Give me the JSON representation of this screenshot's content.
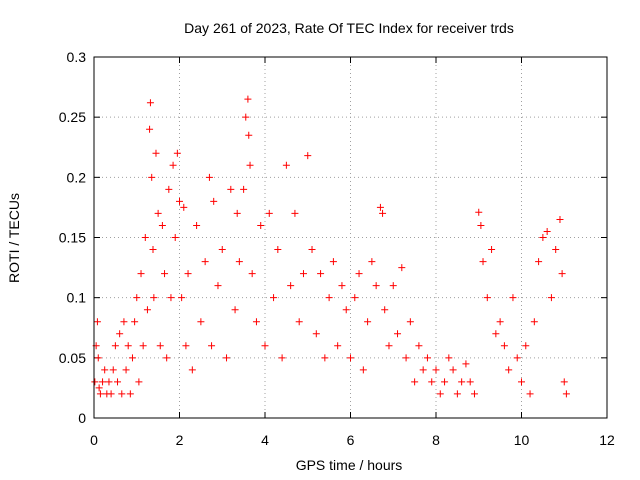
{
  "chart_data": {
    "type": "scatter",
    "title": "Day 261 of 2023, Rate Of TEC Index for receiver trds",
    "xlabel": "GPS time / hours",
    "ylabel": "ROTI / TECUs",
    "xlim": [
      0,
      12
    ],
    "ylim": [
      0,
      0.3
    ],
    "x_ticks": [
      "0",
      "2",
      "4",
      "6",
      "8",
      "10",
      "12"
    ],
    "y_ticks": [
      "0",
      "0.05",
      "0.1",
      "0.15",
      "0.2",
      "0.25",
      "0.3"
    ],
    "grid": true,
    "marker": "+",
    "color": "#ff0000",
    "series": [
      {
        "x": [
          0.02,
          0.05,
          0.08,
          0.1,
          0.12,
          0.15,
          0.2,
          0.25,
          0.3,
          0.35,
          0.4,
          0.45,
          0.5,
          0.55,
          0.6,
          0.65,
          0.7,
          0.75,
          0.8,
          0.85,
          0.9,
          0.95,
          1.0,
          1.05,
          1.1,
          1.15,
          1.2,
          1.25,
          1.3,
          1.32,
          1.35,
          1.38,
          1.4,
          1.45,
          1.5,
          1.55,
          1.6,
          1.65,
          1.7,
          1.75,
          1.8,
          1.85,
          1.9,
          1.95,
          2.0,
          2.05,
          2.1,
          2.15,
          2.2,
          2.3,
          2.4,
          2.5,
          2.6,
          2.7,
          2.75,
          2.8,
          2.9,
          3.0,
          3.1,
          3.2,
          3.3,
          3.35,
          3.4,
          3.5,
          3.55,
          3.6,
          3.62,
          3.65,
          3.7,
          3.8,
          3.9,
          4.0,
          4.1,
          4.2,
          4.3,
          4.4,
          4.5,
          4.6,
          4.7,
          4.8,
          4.9,
          5.0,
          5.1,
          5.2,
          5.3,
          5.4,
          5.5,
          5.6,
          5.7,
          5.8,
          5.9,
          6.0,
          6.1,
          6.2,
          6.3,
          6.4,
          6.5,
          6.6,
          6.7,
          6.75,
          6.8,
          6.9,
          7.0,
          7.1,
          7.2,
          7.3,
          7.4,
          7.5,
          7.6,
          7.7,
          7.8,
          7.9,
          8.0,
          8.1,
          8.2,
          8.3,
          8.4,
          8.5,
          8.6,
          8.7,
          8.8,
          8.9,
          9.0,
          9.05,
          9.1,
          9.2,
          9.3,
          9.4,
          9.5,
          9.6,
          9.7,
          9.8,
          9.9,
          10.0,
          10.1,
          10.2,
          10.3,
          10.4,
          10.5,
          10.6,
          10.7,
          10.8,
          10.9,
          10.95,
          11.0,
          11.05
        ],
        "y": [
          0.03,
          0.06,
          0.08,
          0.05,
          0.025,
          0.02,
          0.03,
          0.04,
          0.02,
          0.03,
          0.02,
          0.04,
          0.06,
          0.03,
          0.07,
          0.02,
          0.08,
          0.04,
          0.06,
          0.02,
          0.05,
          0.08,
          0.1,
          0.03,
          0.12,
          0.06,
          0.15,
          0.09,
          0.24,
          0.262,
          0.2,
          0.14,
          0.1,
          0.22,
          0.17,
          0.06,
          0.16,
          0.12,
          0.05,
          0.19,
          0.1,
          0.21,
          0.15,
          0.22,
          0.18,
          0.1,
          0.175,
          0.06,
          0.12,
          0.04,
          0.16,
          0.08,
          0.13,
          0.2,
          0.06,
          0.18,
          0.11,
          0.14,
          0.05,
          0.19,
          0.09,
          0.17,
          0.13,
          0.19,
          0.25,
          0.265,
          0.235,
          0.21,
          0.12,
          0.08,
          0.16,
          0.06,
          0.17,
          0.1,
          0.14,
          0.05,
          0.21,
          0.11,
          0.17,
          0.08,
          0.12,
          0.218,
          0.14,
          0.07,
          0.12,
          0.05,
          0.1,
          0.13,
          0.06,
          0.11,
          0.09,
          0.05,
          0.1,
          0.12,
          0.04,
          0.08,
          0.13,
          0.11,
          0.175,
          0.17,
          0.09,
          0.06,
          0.11,
          0.07,
          0.125,
          0.05,
          0.08,
          0.03,
          0.06,
          0.04,
          0.05,
          0.03,
          0.04,
          0.02,
          0.03,
          0.05,
          0.04,
          0.02,
          0.03,
          0.045,
          0.03,
          0.02,
          0.171,
          0.16,
          0.13,
          0.1,
          0.14,
          0.07,
          0.08,
          0.06,
          0.04,
          0.1,
          0.05,
          0.03,
          0.06,
          0.02,
          0.08,
          0.13,
          0.15,
          0.155,
          0.1,
          0.14,
          0.165,
          0.12,
          0.03,
          0.02
        ]
      }
    ]
  }
}
